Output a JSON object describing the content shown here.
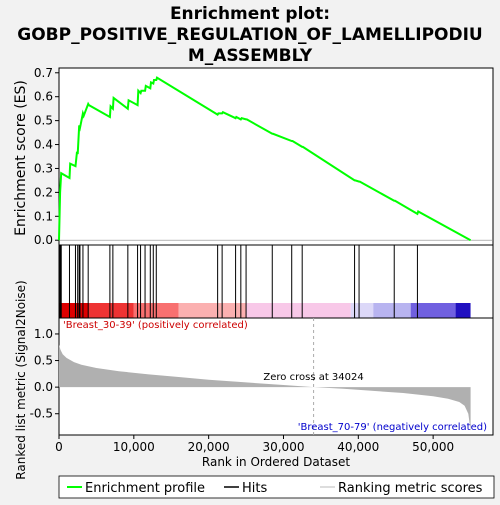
{
  "chart_data": {
    "type": "line",
    "title_line1": "Enrichment plot:",
    "title_line2": "GOBP_POSITIVE_REGULATION_OF_LAMELLIPODIU",
    "title_line3": "M_ASSEMBLY",
    "xlabel": "Rank in Ordered Dataset",
    "ylabel_top": "Enrichment score (ES)",
    "ylabel_bottom": "Ranked list metric (Signal2Noise)",
    "xlim": [
      0,
      58000
    ],
    "es_ylim": [
      -0.02,
      0.72
    ],
    "metric_ylim": [
      -0.9,
      1.3
    ],
    "x_ticks": [
      0,
      10000,
      20000,
      30000,
      40000,
      50000
    ],
    "x_tick_labels": [
      "0",
      "10,000",
      "20,000",
      "30,000",
      "40,000",
      "50,000"
    ],
    "es_ticks": [
      0.0,
      0.1,
      0.2,
      0.3,
      0.4,
      0.5,
      0.6,
      0.7
    ],
    "es_tick_labels": [
      "0.0",
      "0.1",
      "0.2",
      "0.3",
      "0.4",
      "0.5",
      "0.6",
      "0.7"
    ],
    "metric_ticks": [
      -0.5,
      0.0,
      0.5,
      1.0
    ],
    "metric_tick_labels": [
      "-0.5",
      "0.0",
      "0.5",
      "1.0"
    ],
    "es_series": {
      "name": "Enrichment profile",
      "color": "#00ff00",
      "x": [
        0,
        150,
        300,
        1400,
        1500,
        2200,
        2400,
        2500,
        2700,
        2800,
        3200,
        3300,
        3900,
        4000,
        6800,
        6900,
        7200,
        7300,
        9200,
        9300,
        10500,
        10600,
        10900,
        11000,
        11500,
        11600,
        12200,
        12300,
        12600,
        12700,
        13000,
        13100,
        21200,
        21300,
        21800,
        21900,
        23600,
        23700,
        24300,
        24400,
        25000,
        25100,
        28500,
        28600,
        31100,
        31200,
        32500,
        32600,
        39500,
        39600,
        40100,
        40200,
        44800,
        44900,
        47900,
        48000,
        55000
      ],
      "y": [
        0.0,
        0.2,
        0.28,
        0.26,
        0.32,
        0.31,
        0.37,
        0.36,
        0.48,
        0.47,
        0.53,
        0.52,
        0.57,
        0.565,
        0.515,
        0.56,
        0.55,
        0.595,
        0.55,
        0.585,
        0.565,
        0.625,
        0.615,
        0.625,
        0.625,
        0.645,
        0.635,
        0.66,
        0.655,
        0.67,
        0.67,
        0.68,
        0.525,
        0.53,
        0.53,
        0.535,
        0.51,
        0.515,
        0.505,
        0.51,
        0.505,
        0.505,
        0.445,
        0.445,
        0.415,
        0.415,
        0.39,
        0.39,
        0.25,
        0.25,
        0.245,
        0.245,
        0.165,
        0.165,
        0.11,
        0.12,
        0.0
      ]
    },
    "hits": [
      50,
      150,
      250,
      300,
      1400,
      2200,
      2500,
      2700,
      2800,
      3200,
      3900,
      6800,
      7200,
      9200,
      10500,
      10900,
      11500,
      12200,
      12600,
      13000,
      21200,
      21800,
      23600,
      24300,
      25000,
      28500,
      31100,
      32500,
      39500,
      40100,
      44800,
      47900
    ],
    "metric_profile": {
      "x": [
        0,
        200,
        500,
        1000,
        2000,
        3000,
        5000,
        8000,
        12000,
        16000,
        20000,
        25000,
        30000,
        34024,
        38000,
        42000,
        46000,
        50000,
        52000,
        53500,
        54200,
        54700,
        55000
      ],
      "y": [
        0.8,
        0.7,
        0.62,
        0.55,
        0.47,
        0.42,
        0.36,
        0.3,
        0.24,
        0.19,
        0.14,
        0.09,
        0.04,
        0.0,
        -0.03,
        -0.07,
        -0.11,
        -0.17,
        -0.22,
        -0.28,
        -0.35,
        -0.5,
        -0.82
      ]
    },
    "zero_cross_label": "Zero cross at 34024",
    "zero_cross_x": 34024,
    "positive_label": "'Breast_30-39' (positively correlated)",
    "negative_label": "'Breast_70-79' (negatively correlated)",
    "legend": [
      {
        "name": "Enrichment profile",
        "color": "#00ff00"
      },
      {
        "name": "Hits",
        "color": "#000000"
      },
      {
        "name": "Ranking metric scores",
        "color": "#bbbbbb"
      }
    ],
    "colors": {
      "es_line": "#00ff00",
      "hits": "#000000",
      "metric_fill": "#b0b0b0",
      "positive_text": "#cc0000",
      "negative_text": "#0000cc",
      "band_segments": [
        "#dd0000",
        "#ee3333",
        "#f87070",
        "#fbb0b0",
        "#f8c8e8",
        "#dcd8f8",
        "#b8b4f0",
        "#7060e0",
        "#2010c0"
      ]
    }
  }
}
